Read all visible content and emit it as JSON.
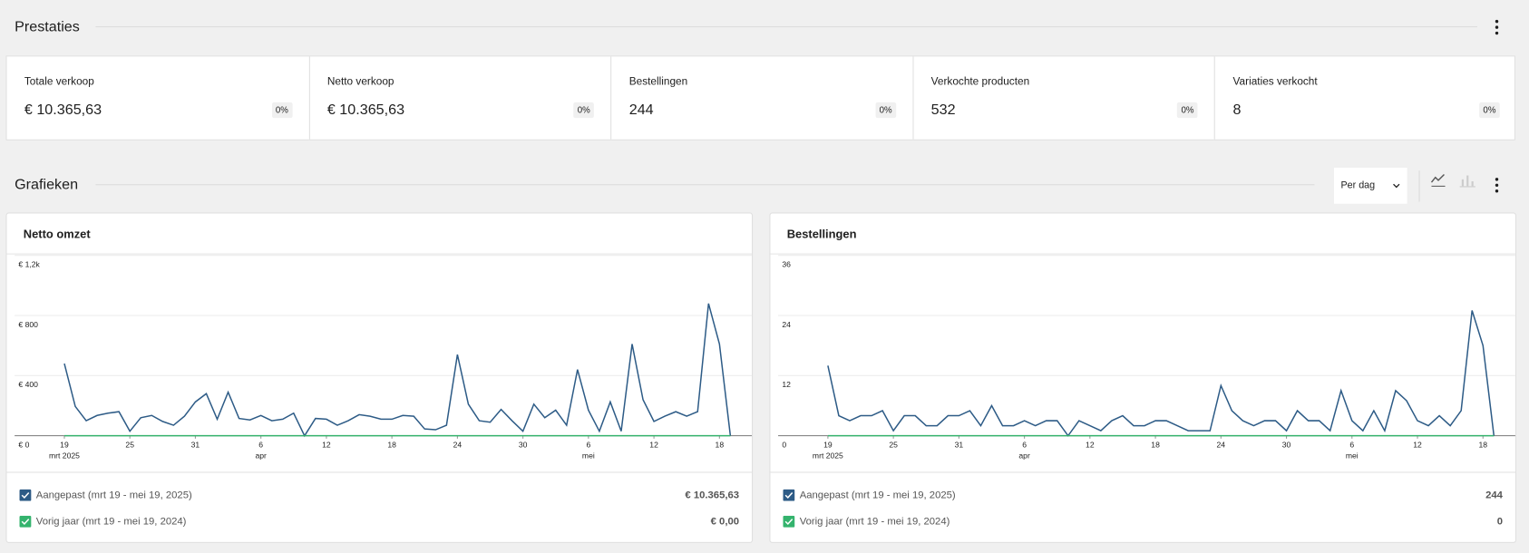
{
  "header": {
    "title": "Prestaties"
  },
  "stats": [
    {
      "label": "Totale verkoop",
      "value": "€ 10.365,63",
      "change": "0%"
    },
    {
      "label": "Netto verkoop",
      "value": "€ 10.365,63",
      "change": "0%"
    },
    {
      "label": "Bestellingen",
      "value": "244",
      "change": "0%"
    },
    {
      "label": "Verkochte producten",
      "value": "532",
      "change": "0%"
    },
    {
      "label": "Variaties verkocht",
      "value": "8",
      "change": "0%"
    }
  ],
  "charts_header": {
    "title": "Grafieken",
    "interval": "Per dag"
  },
  "chart_data": [
    {
      "type": "line",
      "title": "Netto omzet",
      "grid": true,
      "xlim": [
        0,
        61
      ],
      "xticks": [
        {
          "value": 0,
          "label": "19"
        },
        {
          "value": 6,
          "label": "25"
        },
        {
          "value": 12,
          "label": "31"
        },
        {
          "value": 18,
          "label": "6"
        },
        {
          "value": 24,
          "label": "12"
        },
        {
          "value": 30,
          "label": "18"
        },
        {
          "value": 36,
          "label": "24"
        },
        {
          "value": 42,
          "label": "30"
        },
        {
          "value": 48,
          "label": "6"
        },
        {
          "value": 54,
          "label": "12"
        },
        {
          "value": 60,
          "label": "18"
        }
      ],
      "xmonths": [
        {
          "value": 0,
          "label": "mrt 2025"
        },
        {
          "value": 18,
          "label": "apr"
        },
        {
          "value": 48,
          "label": "mei"
        }
      ],
      "ylim": [
        0,
        1200
      ],
      "yticks": [
        {
          "value": 0,
          "label": "€ 0"
        },
        {
          "value": 400,
          "label": "€ 400"
        },
        {
          "value": 800,
          "label": "€ 800"
        },
        {
          "value": 1200,
          "label": "€ 1,2k"
        }
      ],
      "series": [
        {
          "name": "Aangepast (mrt 19 - mei 19, 2025)",
          "color": "#2d5b86",
          "total": "€ 10.365,63",
          "values": [
            480,
            195,
            100,
            135,
            150,
            160,
            30,
            120,
            135,
            95,
            70,
            130,
            225,
            280,
            110,
            290,
            115,
            105,
            135,
            100,
            110,
            150,
            0,
            115,
            110,
            70,
            100,
            140,
            130,
            110,
            110,
            135,
            130,
            45,
            40,
            70,
            540,
            210,
            100,
            90,
            175,
            100,
            30,
            210,
            120,
            170,
            70,
            440,
            170,
            30,
            225,
            30,
            610,
            240,
            95,
            130,
            160,
            130,
            160,
            880,
            610,
            0
          ]
        },
        {
          "name": "Vorig jaar (mrt 19 - mei 19, 2024)",
          "color": "#34b36d",
          "total": "€ 0,00",
          "values": [
            0,
            0,
            0,
            0,
            0,
            0,
            0,
            0,
            0,
            0,
            0,
            0,
            0,
            0,
            0,
            0,
            0,
            0,
            0,
            0,
            0,
            0,
            0,
            0,
            0,
            0,
            0,
            0,
            0,
            0,
            0,
            0,
            0,
            0,
            0,
            0,
            0,
            0,
            0,
            0,
            0,
            0,
            0,
            0,
            0,
            0,
            0,
            0,
            0,
            0,
            0,
            0,
            0,
            0,
            0,
            0,
            0,
            0,
            0,
            0,
            0,
            0
          ]
        }
      ]
    },
    {
      "type": "line",
      "title": "Bestellingen",
      "grid": true,
      "xlim": [
        0,
        61
      ],
      "xticks": [
        {
          "value": 0,
          "label": "19"
        },
        {
          "value": 6,
          "label": "25"
        },
        {
          "value": 12,
          "label": "31"
        },
        {
          "value": 18,
          "label": "6"
        },
        {
          "value": 24,
          "label": "12"
        },
        {
          "value": 30,
          "label": "18"
        },
        {
          "value": 36,
          "label": "24"
        },
        {
          "value": 42,
          "label": "30"
        },
        {
          "value": 48,
          "label": "6"
        },
        {
          "value": 54,
          "label": "12"
        },
        {
          "value": 60,
          "label": "18"
        }
      ],
      "xmonths": [
        {
          "value": 0,
          "label": "mrt 2025"
        },
        {
          "value": 18,
          "label": "apr"
        },
        {
          "value": 48,
          "label": "mei"
        }
      ],
      "ylim": [
        0,
        36
      ],
      "yticks": [
        0,
        12,
        24,
        36
      ],
      "series": [
        {
          "name": "Aangepast (mrt 19 - mei 19, 2025)",
          "color": "#2d5b86",
          "total": "244",
          "values": [
            14,
            4,
            3,
            4,
            4,
            5,
            1,
            4,
            4,
            2,
            2,
            4,
            4,
            5,
            2,
            6,
            2,
            2,
            3,
            2,
            3,
            3,
            0,
            3,
            2,
            1,
            3,
            4,
            2,
            2,
            3,
            3,
            2,
            1,
            1,
            1,
            10,
            5,
            3,
            2,
            3,
            3,
            1,
            5,
            3,
            3,
            1,
            9,
            3,
            1,
            5,
            1,
            9,
            7,
            3,
            2,
            4,
            2,
            5,
            25,
            18,
            0
          ]
        },
        {
          "name": "Vorig jaar (mrt 19 - mei 19, 2024)",
          "color": "#34b36d",
          "total": "0",
          "values": [
            0,
            0,
            0,
            0,
            0,
            0,
            0,
            0,
            0,
            0,
            0,
            0,
            0,
            0,
            0,
            0,
            0,
            0,
            0,
            0,
            0,
            0,
            0,
            0,
            0,
            0,
            0,
            0,
            0,
            0,
            0,
            0,
            0,
            0,
            0,
            0,
            0,
            0,
            0,
            0,
            0,
            0,
            0,
            0,
            0,
            0,
            0,
            0,
            0,
            0,
            0,
            0,
            0,
            0,
            0,
            0,
            0,
            0,
            0,
            0,
            0,
            0
          ]
        }
      ]
    }
  ]
}
